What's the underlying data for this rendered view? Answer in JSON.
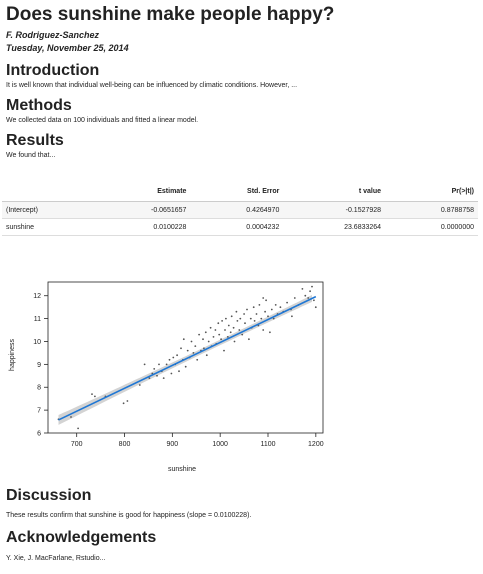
{
  "document": {
    "title": "Does sunshine make people happy?",
    "author": "F. Rodriguez-Sanchez",
    "date": "Tuesday, November 25, 2014"
  },
  "sections": {
    "introduction": {
      "heading": "Introduction",
      "text": "It is well known that individual well-being can be influenced by climatic conditions. However, ..."
    },
    "methods": {
      "heading": "Methods",
      "text": "We collected data on 100 individuals and fitted a linear model."
    },
    "results": {
      "heading": "Results",
      "text": "We found that..."
    },
    "discussion": {
      "heading": "Discussion",
      "text": "These results confirm that sunshine is good for happiness (slope = 0.0100228)."
    },
    "acknowledgements": {
      "heading": "Acknowledgements",
      "text": "Y. Xie, J. MacFarlane, Rstudio..."
    }
  },
  "regression_table": {
    "columns": [
      "",
      "Estimate",
      "Std. Error",
      "t value",
      "Pr(>|t|)"
    ],
    "rows": [
      [
        "(Intercept)",
        "-0.0651657",
        "0.4264970",
        "-0.1527928",
        "0.8788758"
      ],
      [
        "sunshine",
        "0.0100228",
        "0.0004232",
        "23.6833264",
        "0.0000000"
      ]
    ]
  },
  "colors": {
    "fit_line": "#1f77d4",
    "band": "#c8c8c8",
    "points": "#555555"
  },
  "chart_data": {
    "type": "scatter",
    "title": "",
    "xlabel": "sunshine",
    "ylabel": "happiness",
    "xlim": [
      640,
      1215
    ],
    "ylim": [
      6,
      12.6
    ],
    "xticks": [
      700,
      800,
      900,
      1000,
      1100,
      1200
    ],
    "yticks": [
      6,
      7,
      8,
      9,
      10,
      11,
      12
    ],
    "fit": {
      "intercept": -0.0651657,
      "slope": 0.0100228,
      "x_range": [
        662,
        1200
      ]
    },
    "points": [
      [
        662,
        6.6
      ],
      [
        688,
        6.7
      ],
      [
        703,
        6.2
      ],
      [
        732,
        7.7
      ],
      [
        738,
        7.6
      ],
      [
        760,
        7.6
      ],
      [
        798,
        7.3
      ],
      [
        806,
        7.4
      ],
      [
        832,
        8.1
      ],
      [
        842,
        9.0
      ],
      [
        852,
        8.4
      ],
      [
        858,
        8.6
      ],
      [
        862,
        8.8
      ],
      [
        868,
        8.5
      ],
      [
        872,
        9.0
      ],
      [
        878,
        8.7
      ],
      [
        882,
        8.4
      ],
      [
        888,
        9.0
      ],
      [
        894,
        9.2
      ],
      [
        898,
        8.6
      ],
      [
        902,
        9.3
      ],
      [
        906,
        9.0
      ],
      [
        910,
        9.4
      ],
      [
        914,
        8.7
      ],
      [
        918,
        9.7
      ],
      [
        922,
        9.2
      ],
      [
        924,
        10.1
      ],
      [
        928,
        8.9
      ],
      [
        932,
        9.6
      ],
      [
        936,
        9.3
      ],
      [
        940,
        10.0
      ],
      [
        944,
        9.5
      ],
      [
        948,
        9.8
      ],
      [
        952,
        9.2
      ],
      [
        956,
        10.3
      ],
      [
        960,
        9.6
      ],
      [
        964,
        10.1
      ],
      [
        966,
        9.7
      ],
      [
        970,
        10.4
      ],
      [
        972,
        9.4
      ],
      [
        976,
        10.0
      ],
      [
        980,
        10.6
      ],
      [
        982,
        9.8
      ],
      [
        986,
        10.2
      ],
      [
        990,
        10.5
      ],
      [
        992,
        9.9
      ],
      [
        996,
        10.8
      ],
      [
        998,
        10.3
      ],
      [
        1002,
        10.1
      ],
      [
        1004,
        10.9
      ],
      [
        1008,
        9.6
      ],
      [
        1010,
        10.5
      ],
      [
        1012,
        11.0
      ],
      [
        1016,
        10.2
      ],
      [
        1018,
        10.7
      ],
      [
        1022,
        10.4
      ],
      [
        1024,
        11.1
      ],
      [
        1028,
        10.6
      ],
      [
        1030,
        10.0
      ],
      [
        1034,
        11.3
      ],
      [
        1036,
        10.9
      ],
      [
        1040,
        10.5
      ],
      [
        1042,
        11.0
      ],
      [
        1046,
        10.3
      ],
      [
        1050,
        11.2
      ],
      [
        1052,
        10.8
      ],
      [
        1056,
        11.4
      ],
      [
        1060,
        10.1
      ],
      [
        1064,
        11.0
      ],
      [
        1066,
        10.6
      ],
      [
        1070,
        11.5
      ],
      [
        1072,
        10.9
      ],
      [
        1076,
        11.2
      ],
      [
        1080,
        10.7
      ],
      [
        1082,
        11.6
      ],
      [
        1086,
        11.0
      ],
      [
        1090,
        10.5
      ],
      [
        1094,
        11.3
      ],
      [
        1096,
        11.8
      ],
      [
        1100,
        11.1
      ],
      [
        1104,
        10.4
      ],
      [
        1108,
        11.4
      ],
      [
        1112,
        11.0
      ],
      [
        1116,
        11.6
      ],
      [
        1120,
        11.2
      ],
      [
        1126,
        11.5
      ],
      [
        1132,
        11.3
      ],
      [
        1140,
        11.7
      ],
      [
        1148,
        11.4
      ],
      [
        1156,
        11.9
      ],
      [
        1164,
        11.6
      ],
      [
        1172,
        12.3
      ],
      [
        1178,
        12.0
      ],
      [
        1184,
        11.9
      ],
      [
        1188,
        12.2
      ],
      [
        1192,
        12.4
      ],
      [
        1196,
        11.8
      ],
      [
        1200,
        11.5
      ],
      [
        1150,
        11.1
      ],
      [
        1090,
        11.9
      ]
    ]
  }
}
